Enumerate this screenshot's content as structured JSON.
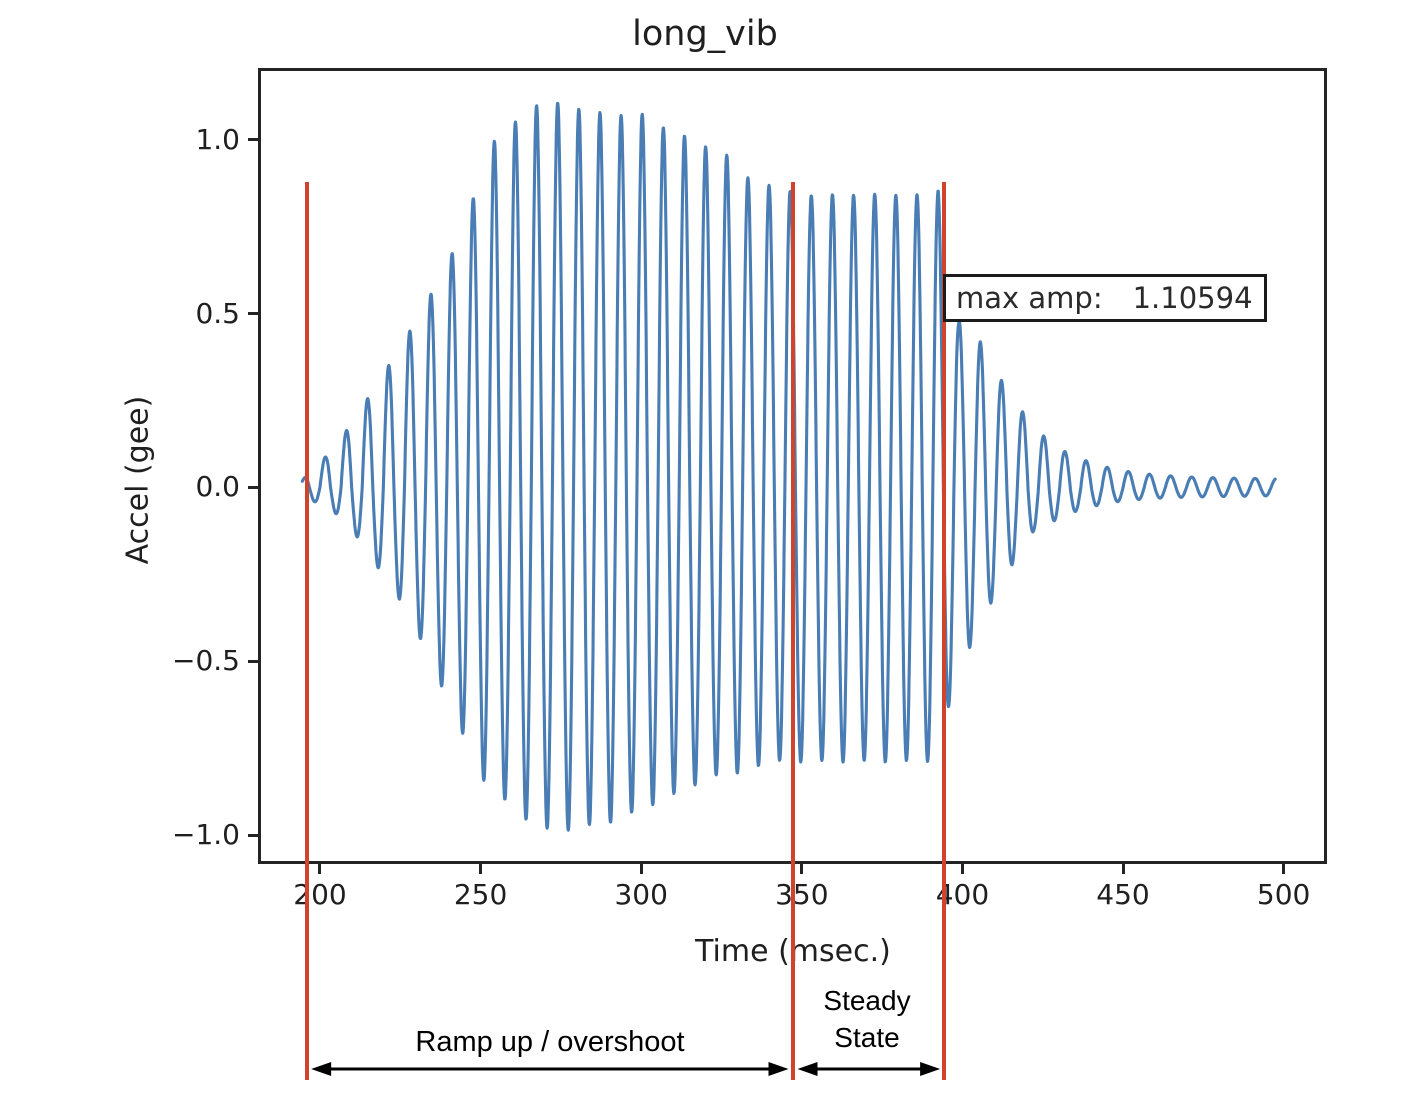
{
  "title": "long_vib",
  "axes": {
    "xlabel": "Time (msec.)",
    "ylabel": "Accel (gee)",
    "xtick_labels": [
      "200",
      "250",
      "300",
      "350",
      "400",
      "450",
      "500"
    ],
    "ytick_labels": [
      "1.0",
      "0.5",
      "0.0",
      "−0.5",
      "−1.0"
    ]
  },
  "annotation_box": {
    "label": "max amp:",
    "value": "1.10594"
  },
  "region_labels": {
    "ramp": "Ramp up / overshoot",
    "steady_line1": "Steady",
    "steady_line2": "State"
  },
  "colors": {
    "line": "#3f76b0",
    "marker_red": "#d0432c",
    "frame": "#242424",
    "text": "#1f1f1f",
    "arrow": "#000000"
  },
  "chart_data": {
    "type": "line",
    "title": "long_vib",
    "xlabel": "Time (msec.)",
    "ylabel": "Accel (gee)",
    "xlim": [
      180.7,
      513.5
    ],
    "ylim": [
      -1.083,
      1.206
    ],
    "xticks": [
      200,
      250,
      300,
      350,
      400,
      450,
      500
    ],
    "yticks": [
      1.0,
      0.5,
      0.0,
      -0.5,
      -1.0
    ],
    "grid": false,
    "legend": "none",
    "max_amp": 1.10594,
    "vertical_markers_msec": [
      196.0,
      347.1,
      394.3
    ],
    "regions": [
      {
        "label": "Ramp up / overshoot",
        "from_msec": 196.0,
        "to_msec": 347.1
      },
      {
        "label": "Steady State",
        "from_msec": 347.1,
        "to_msec": 394.3
      }
    ],
    "signal": {
      "description": "oscillatory acceleration burst: ramp up with overshoot to 1.10594 g, steady state ~0.84 g, then exponential ring-down",
      "start_msec": 194.5,
      "end_msec": 497.5,
      "period_msec": 6.58,
      "peak_anchor_msec": 274,
      "envelope_upper": [
        [
          194.5,
          0.02
        ],
        [
          198,
          0.06
        ],
        [
          202,
          0.09
        ],
        [
          208,
          0.16
        ],
        [
          213,
          0.23
        ],
        [
          218,
          0.3
        ],
        [
          224,
          0.39
        ],
        [
          230,
          0.48
        ],
        [
          236,
          0.58
        ],
        [
          241,
          0.67
        ],
        [
          246,
          0.78
        ],
        [
          251,
          0.93
        ],
        [
          254.5,
          1.0
        ],
        [
          261,
          1.052
        ],
        [
          267.5,
          1.098
        ],
        [
          274,
          1.106
        ],
        [
          280.5,
          1.088
        ],
        [
          287,
          1.078
        ],
        [
          294,
          1.069
        ],
        [
          300,
          1.075
        ],
        [
          307,
          1.034
        ],
        [
          313.5,
          1.011
        ],
        [
          320,
          0.98
        ],
        [
          327,
          0.954
        ],
        [
          333,
          0.891
        ],
        [
          340,
          0.868
        ],
        [
          347,
          0.85
        ],
        [
          353,
          0.839
        ],
        [
          360,
          0.842
        ],
        [
          366.5,
          0.84
        ],
        [
          373,
          0.843
        ],
        [
          379.5,
          0.84
        ],
        [
          386,
          0.842
        ],
        [
          392.5,
          0.853
        ],
        [
          398.8,
          0.48
        ],
        [
          405.5,
          0.42
        ],
        [
          412,
          0.31
        ],
        [
          418.5,
          0.22
        ],
        [
          425,
          0.15
        ],
        [
          431.5,
          0.105
        ],
        [
          438,
          0.078
        ],
        [
          445,
          0.058
        ],
        [
          452,
          0.045
        ],
        [
          460,
          0.036
        ],
        [
          470,
          0.03
        ],
        [
          482,
          0.027
        ],
        [
          497.5,
          0.025
        ]
      ],
      "envelope_lower": [
        [
          194.5,
          0.02
        ],
        [
          198,
          0.04
        ],
        [
          203,
          0.06
        ],
        [
          208,
          0.1
        ],
        [
          213,
          0.16
        ],
        [
          218,
          0.23
        ],
        [
          224,
          0.31
        ],
        [
          230,
          0.41
        ],
        [
          236,
          0.53
        ],
        [
          240,
          0.62
        ],
        [
          244,
          0.7
        ],
        [
          248,
          0.77
        ],
        [
          251.3,
          0.85
        ],
        [
          257.9,
          0.9
        ],
        [
          264.4,
          0.957
        ],
        [
          270.6,
          0.98
        ],
        [
          277.2,
          0.986
        ],
        [
          283.7,
          0.97
        ],
        [
          289.9,
          0.966
        ],
        [
          297.1,
          0.934
        ],
        [
          303.3,
          0.914
        ],
        [
          310.4,
          0.879
        ],
        [
          316.7,
          0.856
        ],
        [
          323.2,
          0.827
        ],
        [
          330,
          0.822
        ],
        [
          336.6,
          0.8
        ],
        [
          343.1,
          0.785
        ],
        [
          350,
          0.79
        ],
        [
          356.6,
          0.785
        ],
        [
          363,
          0.79
        ],
        [
          370,
          0.785
        ],
        [
          376,
          0.79
        ],
        [
          383,
          0.785
        ],
        [
          389,
          0.788
        ],
        [
          392.5,
          0.79
        ],
        [
          395.7,
          0.63
        ],
        [
          402.3,
          0.46
        ],
        [
          409,
          0.33
        ],
        [
          415.6,
          0.22
        ],
        [
          422.2,
          0.125
        ],
        [
          428.8,
          0.095
        ],
        [
          435.5,
          0.068
        ],
        [
          442,
          0.052
        ],
        [
          449,
          0.04
        ],
        [
          458,
          0.032
        ],
        [
          470,
          0.028
        ],
        [
          497.5,
          0.024
        ]
      ]
    }
  }
}
